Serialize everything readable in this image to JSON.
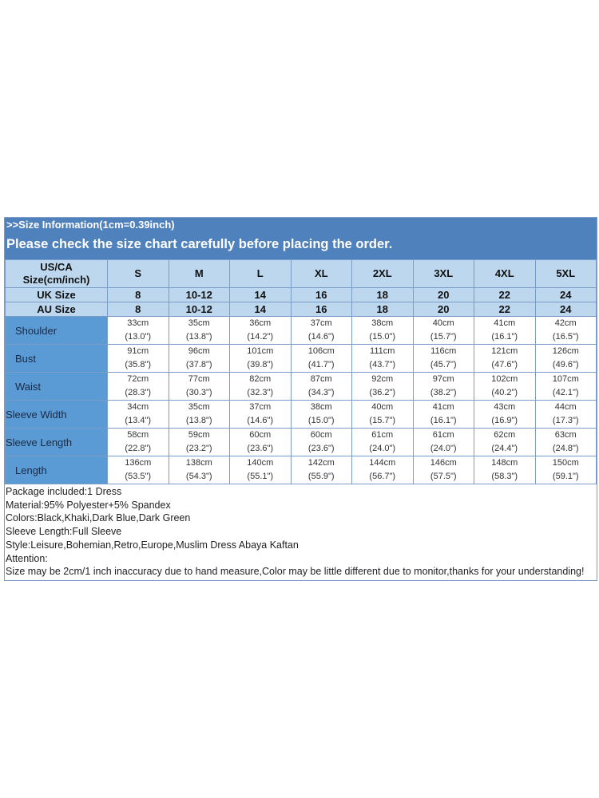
{
  "title": ">>Size Information(1cm=0.39inch)",
  "subtitle": "Please check the size chart carefully before placing the order.",
  "header": {
    "label": "US/CA Size(cm/inch)",
    "sizes": [
      "S",
      "M",
      "L",
      "XL",
      "2XL",
      "3XL",
      "4XL",
      "5XL"
    ]
  },
  "uk": {
    "label": "UK Size",
    "values": [
      "8",
      "10-12",
      "14",
      "16",
      "18",
      "20",
      "22",
      "24"
    ]
  },
  "au": {
    "label": "AU Size",
    "values": [
      "8",
      "10-12",
      "14",
      "16",
      "18",
      "20",
      "22",
      "24"
    ]
  },
  "rows": [
    {
      "label": "Shoulder",
      "cm": [
        "33cm",
        "35cm",
        "36cm",
        "37cm",
        "38cm",
        "40cm",
        "41cm",
        "42cm"
      ],
      "in": [
        "(13.0\")",
        "(13.8\")",
        "(14.2\")",
        "(14.6\")",
        "(15.0\")",
        "(15.7\")",
        "(16.1\")",
        "(16.5\")"
      ]
    },
    {
      "label": "Bust",
      "cm": [
        "91cm",
        "96cm",
        "101cm",
        "106cm",
        "111cm",
        "116cm",
        "121cm",
        "126cm"
      ],
      "in": [
        "(35.8\")",
        "(37.8\")",
        "(39.8\")",
        "(41.7\")",
        "(43.7\")",
        "(45.7\")",
        "(47.6\")",
        "(49.6\")"
      ]
    },
    {
      "label": "Waist",
      "cm": [
        "72cm",
        "77cm",
        "82cm",
        "87cm",
        "92cm",
        "97cm",
        "102cm",
        "107cm"
      ],
      "in": [
        "(28.3\")",
        "(30.3\")",
        "(32.3\")",
        "(34.3\")",
        "(36.2\")",
        "(38.2\")",
        "(40.2\")",
        "(42.1\")"
      ]
    },
    {
      "label": "Sleeve Width",
      "cm": [
        "34cm",
        "35cm",
        "37cm",
        "38cm",
        "40cm",
        "41cm",
        "43cm",
        "44cm"
      ],
      "in": [
        "(13.4\")",
        "(13.8\")",
        "(14.6\")",
        "(15.0\")",
        "(15.7\")",
        "(16.1\")",
        "(16.9\")",
        "(17.3\")"
      ]
    },
    {
      "label": "Sleeve Length",
      "cm": [
        "58cm",
        "59cm",
        "60cm",
        "60cm",
        "61cm",
        "61cm",
        "62cm",
        "63cm"
      ],
      "in": [
        "(22.8\")",
        "(23.2\")",
        "(23.6\")",
        "(23.6\")",
        "(24.0\")",
        "(24.0\")",
        "(24.4\")",
        "(24.8\")"
      ]
    },
    {
      "label": "Length",
      "cm": [
        "136cm",
        "138cm",
        "140cm",
        "142cm",
        "144cm",
        "146cm",
        "148cm",
        "150cm"
      ],
      "in": [
        "(53.5\")",
        "(54.3\")",
        "(55.1\")",
        "(55.9\")",
        "(56.7\")",
        "(57.5\")",
        "(58.3\")",
        "(59.1\")"
      ]
    }
  ],
  "notes": [
    "Package included:1 Dress",
    "Material:95% Polyester+5% Spandex",
    "Colors:Black,Khaki,Dark Blue,Dark Green",
    "Sleeve Length:Full Sleeve",
    "Style:Leisure,Bohemian,Retro,Europe,Muslim Dress Abaya Kaftan",
    "Attention:",
    "Size may be 2cm/1 inch inaccuracy due to hand measure,Color may be little different due to monitor,thanks for your understanding!"
  ]
}
